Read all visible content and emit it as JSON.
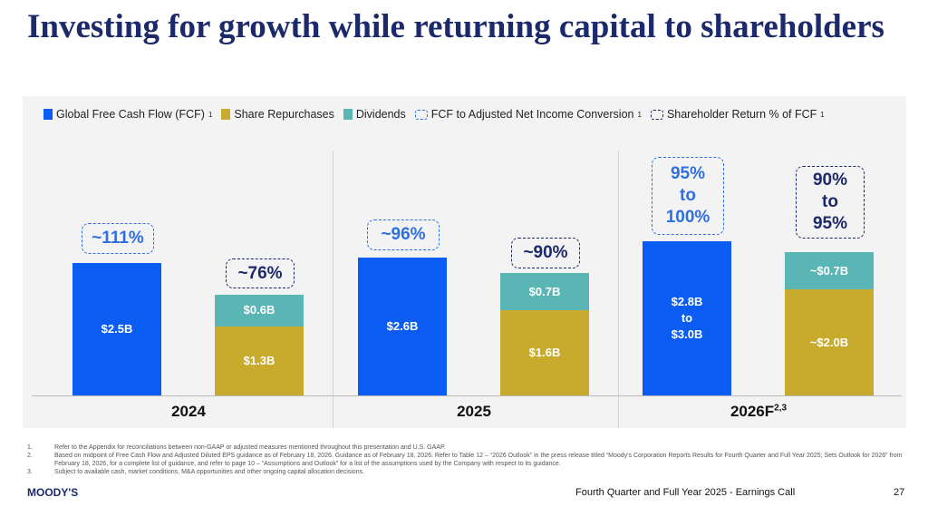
{
  "title": "Investing for growth while returning capital to shareholders",
  "colors": {
    "fcf": "#0a5cf2",
    "repurchases": "#c8ab2c",
    "dividends": "#5ab5b5",
    "fcf_conversion": "#2f6fe0",
    "shareholder_return": "#1c2a6b",
    "title": "#1c2a6b"
  },
  "chart_data": {
    "type": "bar",
    "legend": [
      {
        "label": "Global Free Cash Flow (FCF)",
        "sup": "1"
      },
      {
        "label": "Share Repurchases",
        "sup": ""
      },
      {
        "label": "Dividends",
        "sup": ""
      },
      {
        "label": "FCF to Adjusted Net Income Conversion",
        "sup": "1"
      },
      {
        "label": "Shareholder Return % of FCF",
        "sup": "1"
      }
    ],
    "legend_position": "top-left",
    "categories": [
      {
        "label": "2024",
        "sup": ""
      },
      {
        "label": "2025",
        "sup": ""
      },
      {
        "label": "2026F",
        "sup": "2,3"
      }
    ],
    "fcf": [
      {
        "value": 2.5,
        "label": "$2.5B"
      },
      {
        "value": 2.6,
        "label": "$2.6B"
      },
      {
        "value": 2.9,
        "label": "$2.8B\nto\n$3.0B"
      }
    ],
    "repurchases": [
      {
        "value": 1.3,
        "label": "$1.3B"
      },
      {
        "value": 1.6,
        "label": "$1.6B"
      },
      {
        "value": 2.0,
        "label": "~$2.0B"
      }
    ],
    "dividends": [
      {
        "value": 0.6,
        "label": "$0.6B"
      },
      {
        "value": 0.7,
        "label": "$0.7B"
      },
      {
        "value": 0.7,
        "label": "~$0.7B"
      }
    ],
    "fcf_conversion": [
      "~111%",
      "~96%",
      "95%\nto\n100%"
    ],
    "shareholder_return": [
      "~76%",
      "~90%",
      "90%\nto\n95%"
    ]
  },
  "footnotes": [
    {
      "n": "1.",
      "text": "Refer to the Appendix for reconciliations between non-GAAP or adjusted measures mentioned throughout this presentation and U.S. GAAP."
    },
    {
      "n": "2.",
      "text": "Based on midpoint of Free Cash Flow and Adjusted Diluted EPS guidance as of February 18, 2026. Guidance as of February 18, 2026. Refer to Table 12 – “2026 Outlook” in the press release titled “Moody's Corporation Reports Results for Fourth Quarter and Full Year 2025; Sets Outlook for 2026” from February 18, 2026, for a complete list of guidance, and refer to page 10 – “Assumptions and Outlook” for a list of the assumptions used by the Company with respect to its guidance."
    },
    {
      "n": "3.",
      "text": "Subject to available cash, market conditions, M&A opportunities and other ongoing capital allocation decisions."
    }
  ],
  "footer": {
    "logo": "MOODY'S",
    "event": "Fourth Quarter and Full Year 2025 - Earnings Call",
    "page": "27"
  }
}
